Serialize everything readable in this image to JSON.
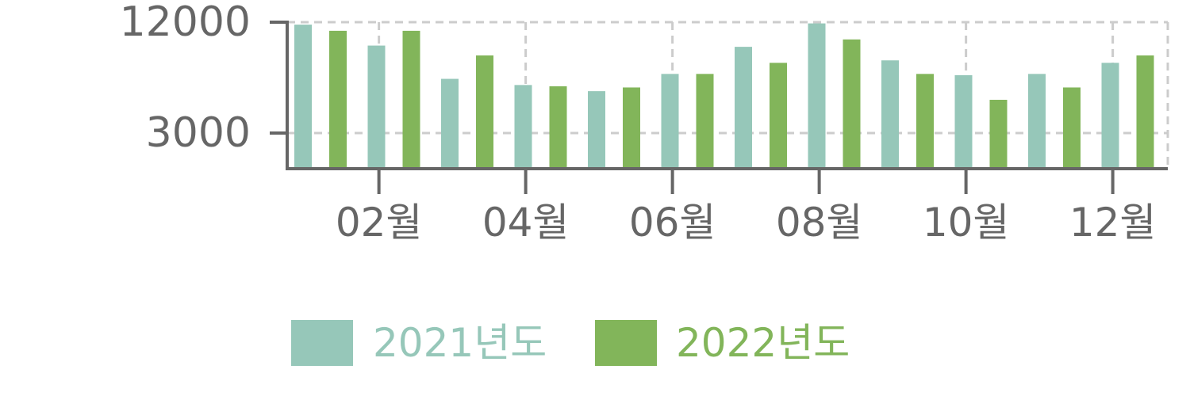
{
  "chart_data": {
    "type": "bar",
    "x_unit": "월",
    "y_ticks": [
      12000,
      3000
    ],
    "x_ticks": [
      "02월",
      "04월",
      "06월",
      "08월",
      "10월",
      "12월"
    ],
    "series": [
      {
        "name": "2021년도",
        "color": "#96c7b9",
        "values": [
          11800,
          10100,
          7400,
          6900,
          6400,
          7800,
          10000,
          11900,
          8900,
          7700,
          7800,
          8700
        ]
      },
      {
        "name": "2022년도",
        "color": "#82b55a",
        "values": [
          11300,
          11300,
          9300,
          6800,
          6700,
          7800,
          8700,
          10600,
          7800,
          5700,
          6700,
          9300
        ]
      }
    ],
    "grid": true,
    "grid_style": "dashed",
    "legend_position": "bottom-center",
    "axis_color": "#666666",
    "grid_color": "#cccccc"
  }
}
